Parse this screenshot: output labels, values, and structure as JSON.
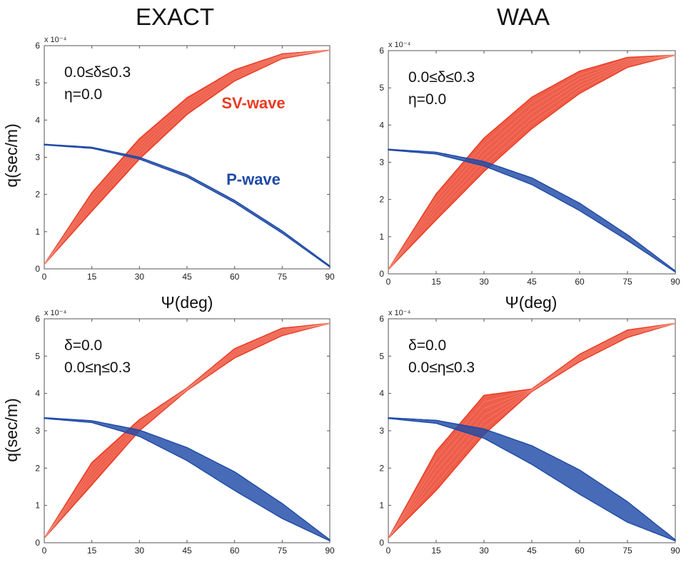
{
  "colors": {
    "sv": "#ea3b22",
    "p": "#1f4aa6"
  },
  "column_titles": [
    "EXACT",
    "WAA"
  ],
  "chart_data": [
    {
      "type": "area",
      "panel": "top-left",
      "method": "EXACT",
      "exponent_label": "x 10⁻⁴",
      "xlabel": "Ψ(deg)",
      "ylabel": "q(sec/m)",
      "xlim": [
        0,
        90
      ],
      "ylim": [
        0,
        6
      ],
      "x_ticks": [
        "0",
        "15",
        "30",
        "45",
        "60",
        "75",
        "90"
      ],
      "y_ticks": [
        "0",
        "1",
        "2",
        "3",
        "4",
        "5",
        "6"
      ],
      "annotations": [
        "0.0≤δ≤0.3",
        "η=0.0"
      ],
      "series_labels": [
        "SV-wave",
        "P-wave"
      ],
      "x": [
        0,
        15,
        30,
        45,
        60,
        75,
        90
      ],
      "series": [
        {
          "name": "SV-wave",
          "lower": [
            0.12,
            1.55,
            2.95,
            4.15,
            5.05,
            5.65,
            5.88
          ],
          "upper": [
            0.12,
            2.05,
            3.5,
            4.6,
            5.35,
            5.78,
            5.88
          ]
        },
        {
          "name": "P-wave",
          "lower": [
            3.33,
            3.24,
            2.95,
            2.47,
            1.78,
            0.96,
            0.05
          ],
          "upper": [
            3.35,
            3.27,
            3.0,
            2.53,
            1.84,
            1.02,
            0.08
          ]
        }
      ]
    },
    {
      "type": "area",
      "panel": "top-right",
      "method": "WAA",
      "exponent_label": "x 10⁻⁴",
      "xlabel": "Ψ(deg)",
      "ylabel": "",
      "xlim": [
        0,
        90
      ],
      "ylim": [
        0,
        6
      ],
      "x_ticks": [
        "0",
        "15",
        "30",
        "45",
        "60",
        "75",
        "90"
      ],
      "y_ticks": [
        "0",
        "1",
        "2",
        "3",
        "4",
        "5",
        "6"
      ],
      "annotations": [
        "0.0≤δ≤0.3",
        "η=0.0"
      ],
      "series_labels": [],
      "x": [
        0,
        15,
        30,
        45,
        60,
        75,
        90
      ],
      "series": [
        {
          "name": "",
          "lower": [
            0.12,
            1.45,
            2.75,
            3.9,
            4.85,
            5.55,
            5.88
          ],
          "upper": [
            0.12,
            2.15,
            3.65,
            4.75,
            5.45,
            5.82,
            5.88
          ]
        },
        {
          "name": "",
          "lower": [
            3.33,
            3.22,
            2.9,
            2.4,
            1.7,
            0.9,
            0.05
          ],
          "upper": [
            3.35,
            3.27,
            3.02,
            2.58,
            1.9,
            1.05,
            0.08
          ]
        }
      ]
    },
    {
      "type": "area",
      "panel": "bottom-left",
      "method": "EXACT",
      "exponent_label": "x 10⁻⁴",
      "xlabel": "",
      "ylabel": "q(sec/m)",
      "xlim": [
        0,
        90
      ],
      "ylim": [
        0,
        6
      ],
      "x_ticks": [
        "0",
        "15",
        "30",
        "45",
        "60",
        "75",
        "90"
      ],
      "y_ticks": [
        "0",
        "1",
        "2",
        "3",
        "4",
        "5",
        "6"
      ],
      "annotations": [
        "δ=0.0",
        "0.0≤η≤0.3"
      ],
      "series_labels": [],
      "x": [
        0,
        15,
        30,
        45,
        60,
        75,
        90
      ],
      "series": [
        {
          "name": "",
          "lower": [
            0.12,
            1.55,
            3.0,
            4.08,
            4.95,
            5.55,
            5.88
          ],
          "upper": [
            0.12,
            2.15,
            3.3,
            4.15,
            5.2,
            5.75,
            5.88
          ]
        },
        {
          "name": "",
          "lower": [
            3.33,
            3.22,
            2.85,
            2.2,
            1.4,
            0.65,
            0.05
          ],
          "upper": [
            3.35,
            3.27,
            3.02,
            2.55,
            1.9,
            1.05,
            0.08
          ]
        }
      ]
    },
    {
      "type": "area",
      "panel": "bottom-right",
      "method": "WAA",
      "exponent_label": "x 10⁻⁴",
      "xlabel": "",
      "ylabel": "",
      "xlim": [
        0,
        90
      ],
      "ylim": [
        0,
        6
      ],
      "x_ticks": [
        "0",
        "15",
        "30",
        "45",
        "60",
        "75",
        "90"
      ],
      "y_ticks": [
        "0",
        "1",
        "2",
        "3",
        "4",
        "5",
        "6"
      ],
      "annotations": [
        "δ=0.0",
        "0.0≤η≤0.3"
      ],
      "series_labels": [],
      "x": [
        0,
        15,
        30,
        45,
        60,
        75,
        90
      ],
      "series": [
        {
          "name": "",
          "lower": [
            0.12,
            1.4,
            2.9,
            4.05,
            4.85,
            5.5,
            5.88
          ],
          "upper": [
            0.12,
            2.45,
            3.95,
            4.12,
            5.05,
            5.7,
            5.88
          ]
        },
        {
          "name": "",
          "lower": [
            3.33,
            3.2,
            2.8,
            2.1,
            1.3,
            0.55,
            0.05
          ],
          "upper": [
            3.35,
            3.28,
            3.05,
            2.6,
            1.95,
            1.1,
            0.08
          ]
        }
      ]
    }
  ]
}
